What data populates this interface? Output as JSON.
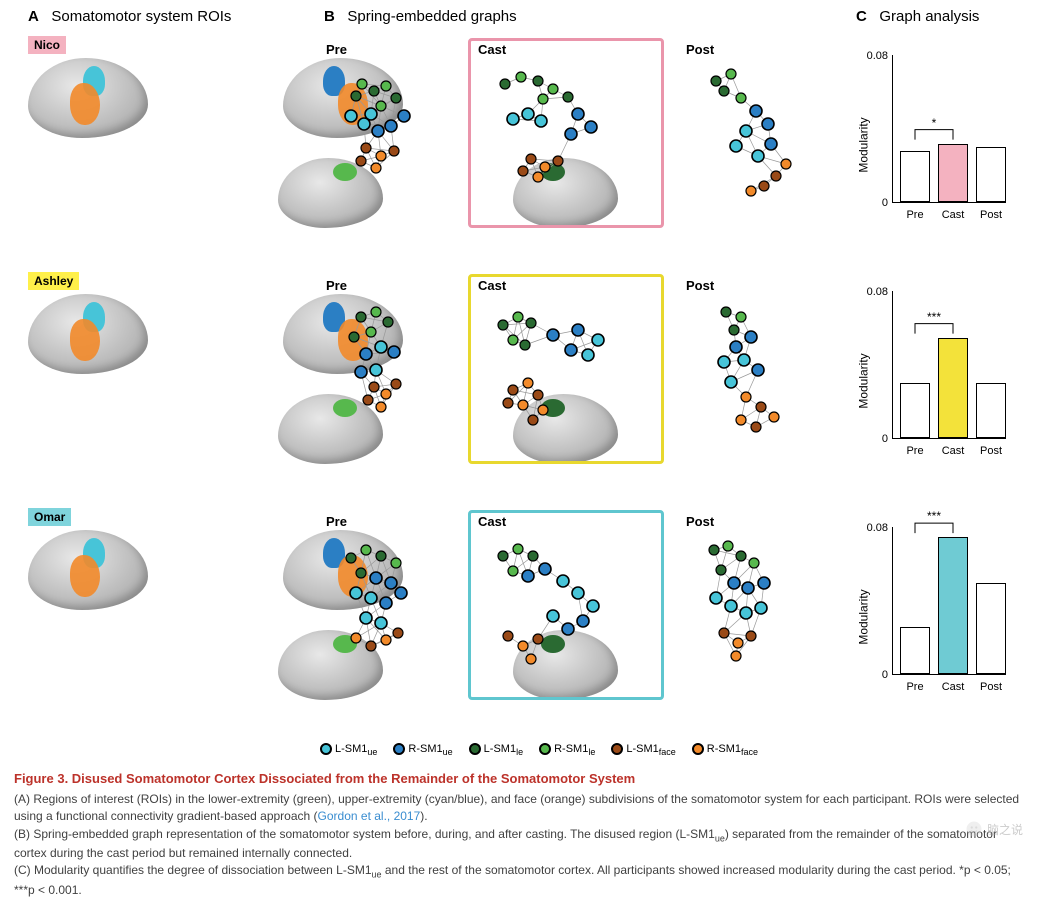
{
  "panels": {
    "A": {
      "letter": "A",
      "title": "Somatomotor system ROIs"
    },
    "B": {
      "letter": "B",
      "title": "Spring-embedded graphs"
    },
    "C": {
      "letter": "C",
      "title": "Graph analysis"
    }
  },
  "subjects": [
    {
      "name": "Nico",
      "color": "#f4b2c0",
      "box_color": "#ea95ab"
    },
    {
      "name": "Ashley",
      "color": "#fff04a",
      "box_color": "#e8d82e"
    },
    {
      "name": "Omar",
      "color": "#7fd4dc",
      "box_color": "#5fc6cf"
    }
  ],
  "phases": [
    "Pre",
    "Cast",
    "Post"
  ],
  "roi_colors": {
    "upper_L": "#47c4d8",
    "upper_R": "#2b7fc4",
    "lower_L": "#2a6a32",
    "lower_R": "#57b84d",
    "face_L": "#9a4a17",
    "face_R": "#f28a2a"
  },
  "legend": [
    {
      "label_html": "L-SM1<sub>ue</sub>",
      "fill": "#47c4d8"
    },
    {
      "label_html": "R-SM1<sub>ue</sub>",
      "fill": "#2b7fc4"
    },
    {
      "label_html": "L-SM1<sub>le</sub>",
      "fill": "#2a6a32"
    },
    {
      "label_html": "R-SM1<sub>le</sub>",
      "fill": "#57b84d"
    },
    {
      "label_html": "L-SM1<sub>face</sub>",
      "fill": "#9a4a17"
    },
    {
      "label_html": "R-SM1<sub>face</sub>",
      "fill": "#f28a2a"
    }
  ],
  "bar_charts": {
    "ylabel": "Modularity",
    "ymax_label": "0.08",
    "ymax": 0.08,
    "ymin_label": "0",
    "xticks": [
      "Pre",
      "Cast",
      "Post"
    ],
    "empty_fill": "#ffffff",
    "rows": [
      {
        "values": [
          0.028,
          0.032,
          0.03
        ],
        "cast_fill": "#f4b2c0",
        "sig": "*",
        "sig_label": "p < 0.05"
      },
      {
        "values": [
          0.03,
          0.055,
          0.03
        ],
        "cast_fill": "#f3e23a",
        "sig": "***",
        "sig_label": "p < 0.001"
      },
      {
        "values": [
          0.026,
          0.075,
          0.05
        ],
        "cast_fill": "#6fcbd3",
        "sig": "***",
        "sig_label": "p < 0.001"
      }
    ]
  },
  "graphs": {
    "rows": [
      {
        "panels": [
          {
            "phase": "Pre",
            "boxed": false,
            "nodes": [
              [
                30,
                40,
                "lo"
              ],
              [
                36,
                28,
                "lo"
              ],
              [
                48,
                35,
                "lo"
              ],
              [
                60,
                30,
                "lo"
              ],
              [
                70,
                42,
                "lo"
              ],
              [
                55,
                50,
                "lo"
              ],
              [
                25,
                60,
                "uL"
              ],
              [
                38,
                68,
                "uL"
              ],
              [
                52,
                75,
                "uR"
              ],
              [
                65,
                70,
                "uR"
              ],
              [
                78,
                60,
                "uR"
              ],
              [
                45,
                58,
                "uL"
              ],
              [
                40,
                92,
                "fa"
              ],
              [
                55,
                100,
                "fa"
              ],
              [
                68,
                95,
                "fa"
              ],
              [
                50,
                112,
                "fa"
              ],
              [
                35,
                105,
                "fa"
              ]
            ]
          },
          {
            "phase": "Cast",
            "boxed": true,
            "nodes": [
              [
                22,
                25,
                "lo"
              ],
              [
                38,
                18,
                "lo"
              ],
              [
                55,
                22,
                "lo"
              ],
              [
                70,
                30,
                "lo"
              ],
              [
                85,
                38,
                "lo"
              ],
              [
                60,
                40,
                "lo"
              ],
              [
                95,
                55,
                "uR"
              ],
              [
                108,
                68,
                "uR"
              ],
              [
                88,
                75,
                "uR"
              ],
              [
                30,
                60,
                "uL"
              ],
              [
                45,
                55,
                "uL"
              ],
              [
                58,
                62,
                "uL"
              ],
              [
                48,
                100,
                "fa"
              ],
              [
                62,
                108,
                "fa"
              ],
              [
                75,
                102,
                "fa"
              ],
              [
                55,
                118,
                "fa"
              ],
              [
                40,
                112,
                "fa"
              ]
            ]
          },
          {
            "phase": "Post",
            "boxed": false,
            "nodes": [
              [
                30,
                25,
                "lo"
              ],
              [
                45,
                18,
                "lo"
              ],
              [
                38,
                35,
                "lo"
              ],
              [
                55,
                42,
                "lo"
              ],
              [
                70,
                55,
                "uR"
              ],
              [
                82,
                68,
                "uR"
              ],
              [
                60,
                75,
                "uL"
              ],
              [
                50,
                90,
                "uL"
              ],
              [
                72,
                100,
                "uL"
              ],
              [
                85,
                88,
                "uR"
              ],
              [
                90,
                120,
                "fa"
              ],
              [
                100,
                108,
                "fa"
              ],
              [
                78,
                130,
                "fa"
              ],
              [
                65,
                135,
                "fa"
              ]
            ]
          }
        ]
      },
      {
        "panels": [
          {
            "phase": "Pre",
            "boxed": false,
            "nodes": [
              [
                35,
                25,
                "lo"
              ],
              [
                50,
                20,
                "lo"
              ],
              [
                62,
                30,
                "lo"
              ],
              [
                45,
                40,
                "lo"
              ],
              [
                28,
                45,
                "lo"
              ],
              [
                55,
                55,
                "uL"
              ],
              [
                40,
                62,
                "uR"
              ],
              [
                68,
                60,
                "uR"
              ],
              [
                50,
                78,
                "uL"
              ],
              [
                35,
                80,
                "uR"
              ],
              [
                48,
                95,
                "fa"
              ],
              [
                60,
                102,
                "fa"
              ],
              [
                70,
                92,
                "fa"
              ],
              [
                55,
                115,
                "fa"
              ],
              [
                42,
                108,
                "fa"
              ]
            ]
          },
          {
            "phase": "Cast",
            "boxed": true,
            "nodes": [
              [
                20,
                30,
                "lo"
              ],
              [
                35,
                22,
                "lo"
              ],
              [
                48,
                28,
                "lo"
              ],
              [
                30,
                45,
                "lo"
              ],
              [
                42,
                50,
                "lo"
              ],
              [
                70,
                40,
                "uR"
              ],
              [
                95,
                35,
                "uR"
              ],
              [
                115,
                45,
                "uL"
              ],
              [
                105,
                60,
                "uL"
              ],
              [
                88,
                55,
                "uR"
              ],
              [
                30,
                95,
                "fa"
              ],
              [
                45,
                88,
                "fa"
              ],
              [
                55,
                100,
                "fa"
              ],
              [
                40,
                110,
                "fa"
              ],
              [
                25,
                108,
                "fa"
              ],
              [
                60,
                115,
                "fa"
              ],
              [
                50,
                125,
                "fa"
              ]
            ]
          },
          {
            "phase": "Post",
            "boxed": false,
            "nodes": [
              [
                40,
                20,
                "lo"
              ],
              [
                55,
                25,
                "lo"
              ],
              [
                48,
                38,
                "lo"
              ],
              [
                65,
                45,
                "uR"
              ],
              [
                50,
                55,
                "uR"
              ],
              [
                38,
                70,
                "uL"
              ],
              [
                58,
                68,
                "uL"
              ],
              [
                72,
                78,
                "uR"
              ],
              [
                45,
                90,
                "uL"
              ],
              [
                60,
                105,
                "fa"
              ],
              [
                75,
                115,
                "fa"
              ],
              [
                88,
                125,
                "fa"
              ],
              [
                70,
                135,
                "fa"
              ],
              [
                55,
                128,
                "fa"
              ]
            ]
          }
        ]
      },
      {
        "panels": [
          {
            "phase": "Pre",
            "boxed": false,
            "nodes": [
              [
                25,
                30,
                "lo"
              ],
              [
                40,
                22,
                "lo"
              ],
              [
                55,
                28,
                "lo"
              ],
              [
                70,
                35,
                "lo"
              ],
              [
                35,
                45,
                "lo"
              ],
              [
                50,
                50,
                "uR"
              ],
              [
                65,
                55,
                "uR"
              ],
              [
                30,
                65,
                "uL"
              ],
              [
                45,
                70,
                "uL"
              ],
              [
                60,
                75,
                "uR"
              ],
              [
                75,
                65,
                "uR"
              ],
              [
                40,
                90,
                "uL"
              ],
              [
                55,
                95,
                "uL"
              ],
              [
                30,
                110,
                "fa"
              ],
              [
                45,
                118,
                "fa"
              ],
              [
                60,
                112,
                "fa"
              ],
              [
                72,
                105,
                "fa"
              ]
            ]
          },
          {
            "phase": "Cast",
            "boxed": true,
            "nodes": [
              [
                20,
                25,
                "lo"
              ],
              [
                35,
                18,
                "lo"
              ],
              [
                50,
                25,
                "lo"
              ],
              [
                30,
                40,
                "lo"
              ],
              [
                45,
                45,
                "uR"
              ],
              [
                62,
                38,
                "uR"
              ],
              [
                80,
                50,
                "uL"
              ],
              [
                95,
                62,
                "uL"
              ],
              [
                110,
                75,
                "uL"
              ],
              [
                100,
                90,
                "uR"
              ],
              [
                85,
                98,
                "uR"
              ],
              [
                70,
                85,
                "uL"
              ],
              [
                25,
                105,
                "fa"
              ],
              [
                40,
                115,
                "fa"
              ],
              [
                55,
                108,
                "fa"
              ],
              [
                48,
                128,
                "fa"
              ]
            ]
          },
          {
            "phase": "Post",
            "boxed": false,
            "nodes": [
              [
                28,
                22,
                "lo"
              ],
              [
                42,
                18,
                "lo"
              ],
              [
                55,
                28,
                "lo"
              ],
              [
                68,
                35,
                "lo"
              ],
              [
                35,
                42,
                "lo"
              ],
              [
                48,
                55,
                "uR"
              ],
              [
                62,
                60,
                "uR"
              ],
              [
                78,
                55,
                "uR"
              ],
              [
                30,
                70,
                "uL"
              ],
              [
                45,
                78,
                "uL"
              ],
              [
                60,
                85,
                "uL"
              ],
              [
                75,
                80,
                "uL"
              ],
              [
                38,
                105,
                "fa"
              ],
              [
                52,
                115,
                "fa"
              ],
              [
                65,
                108,
                "fa"
              ],
              [
                50,
                128,
                "fa"
              ]
            ]
          }
        ]
      }
    ],
    "color_map": {
      "lo": [
        "#2a6a32",
        "#57b84d"
      ],
      "uL": "#47c4d8",
      "uR": "#2b7fc4",
      "fa": [
        "#9a4a17",
        "#f28a2a"
      ]
    }
  },
  "caption": {
    "title": "Figure 3.  Disused Somatomotor Cortex Dissociated from the Remainder of the Somatomotor System",
    "lineA_pre": "(A) Regions of interest (ROIs) in the lower-extremity (green), upper-extremity (cyan/blue), and face (orange) subdivisions of the somatomotor system for each participant. ROIs were selected using a functional connectivity gradient-based approach (",
    "lineA_ref": "Gordon et al., 2017",
    "lineA_post": ").",
    "lineB_html": "(B) Spring-embedded graph representation of the somatomotor system before, during, and after casting. The disused region (L-SM1<sub>ue</sub>) separated from the remainder of the somatomotor cortex during the cast period but remained internally connected.",
    "lineC_html": "(C) Modularity quantifies the degree of dissociation between L-SM1<sub>ue</sub> and the rest of the somatomotor cortex. All participants showed increased modularity during the cast period. *p < 0.05; ***p < 0.001."
  },
  "watermark": "脑之说"
}
